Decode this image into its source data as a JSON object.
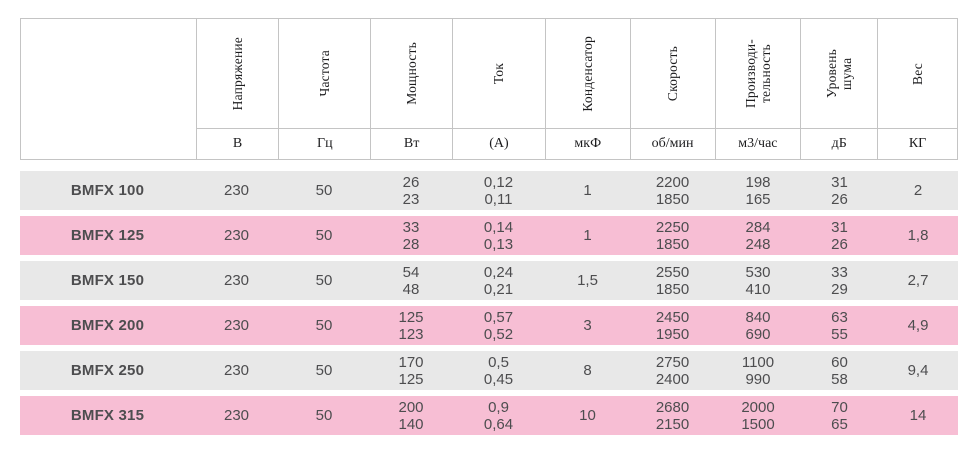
{
  "header": {
    "columns": [
      {
        "name": "",
        "unit": ""
      },
      {
        "name": "Напряжение",
        "unit": "В"
      },
      {
        "name": "Частота",
        "unit": "Гц"
      },
      {
        "name": "Мощность",
        "unit": "Вт"
      },
      {
        "name": "Ток",
        "unit": "(А)"
      },
      {
        "name": "Конденсатор",
        "unit": "мкФ"
      },
      {
        "name": "Скорость",
        "unit": "об/мин"
      },
      {
        "name": "Производи-\nтельность",
        "unit": "м3/час"
      },
      {
        "name": "Уровень\nшума",
        "unit": "дБ"
      },
      {
        "name": "Вес",
        "unit": "КГ"
      }
    ]
  },
  "rows": [
    {
      "model": "BMFX 100",
      "highlight": false,
      "values": [
        "230",
        "50",
        "26\n23",
        "0,12\n0,11",
        "1",
        "2200\n1850",
        "198\n165",
        "31\n26",
        "2"
      ]
    },
    {
      "model": "BMFX 125",
      "highlight": true,
      "values": [
        "230",
        "50",
        "33\n28",
        "0,14\n0,13",
        "1",
        "2250\n1850",
        "284\n248",
        "31\n26",
        "1,8"
      ]
    },
    {
      "model": "BMFX 150",
      "highlight": false,
      "values": [
        "230",
        "50",
        "54\n48",
        "0,24\n0,21",
        "1,5",
        "2550\n1850",
        "530\n410",
        "33\n29",
        "2,7"
      ]
    },
    {
      "model": "BMFX 200",
      "highlight": true,
      "values": [
        "230",
        "50",
        "125\n123",
        "0,57\n0,52",
        "3",
        "2450\n1950",
        "840\n690",
        "63\n55",
        "4,9"
      ]
    },
    {
      "model": "BMFX 250",
      "highlight": false,
      "values": [
        "230",
        "50",
        "170\n125",
        "0,5\n0,45",
        "8",
        "2750\n2400",
        "1100\n990",
        "60\n58",
        "9,4"
      ]
    },
    {
      "model": "BMFX 315",
      "highlight": true,
      "values": [
        "230",
        "50",
        "200\n140",
        "0,9\n0,64",
        "10",
        "2680\n2150",
        "2000\n1500",
        "70\n65",
        "14"
      ]
    }
  ],
  "colors": {
    "row_gray": "#e8e8e8",
    "row_pink": "#f7bed4",
    "border": "#c4c4c4",
    "text": "#4d4d4f",
    "header_text": "#1d1d1f"
  }
}
